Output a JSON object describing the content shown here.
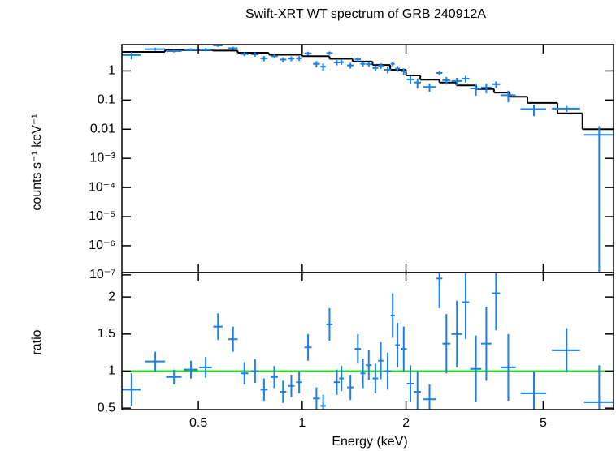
{
  "chart_data": [
    {
      "type": "errorbar",
      "title": "Swift-XRT WT spectrum of GRB 240912A",
      "ylabel": "counts s⁻¹ keV⁻¹",
      "xlog": true,
      "ylog": true,
      "xlim": [
        0.3,
        8
      ],
      "ylim": [
        1.2e-07,
        8
      ],
      "yticks": [
        1,
        0.1,
        0.01,
        {
          "value": 0.001,
          "label": "10⁻³"
        },
        {
          "value": 0.0001,
          "label": "10⁻⁴"
        },
        {
          "value": 1e-05,
          "label": "10⁻⁵"
        },
        {
          "value": 1e-06,
          "label": "10⁻⁶"
        },
        {
          "value": 1e-07,
          "label": "10⁻⁷"
        }
      ],
      "color": "#1a7fe8",
      "x": [
        0.32,
        0.375,
        0.425,
        0.476,
        0.525,
        0.57,
        0.63,
        0.68,
        0.73,
        0.775,
        0.83,
        0.88,
        0.93,
        0.98,
        1.04,
        1.1,
        1.15,
        1.2,
        1.26,
        1.3,
        1.38,
        1.45,
        1.5,
        1.56,
        1.63,
        1.69,
        1.77,
        1.83,
        1.89,
        1.97,
        2.06,
        2.16,
        2.34,
        2.5,
        2.62,
        2.81,
        2.98,
        3.19,
        3.42,
        3.65,
        3.96,
        4.7,
        5.85,
        7.27
      ],
      "x_err": [
        0.02,
        0.025,
        0.022,
        0.022,
        0.022,
        0.018,
        0.02,
        0.018,
        0.018,
        0.018,
        0.02,
        0.02,
        0.02,
        0.02,
        0.025,
        0.025,
        0.02,
        0.025,
        0.025,
        0.02,
        0.03,
        0.03,
        0.025,
        0.03,
        0.03,
        0.03,
        0.04,
        0.025,
        0.03,
        0.04,
        0.05,
        0.05,
        0.1,
        0.05,
        0.07,
        0.1,
        0.07,
        0.12,
        0.12,
        0.1,
        0.2,
        0.4,
        0.55,
        0.7
      ],
      "values": [
        3.5,
        5.6,
        4.8,
        5.4,
        5.4,
        7.5,
        6.0,
        3.8,
        3.7,
        2.7,
        3.2,
        2.45,
        2.65,
        2.7,
        4.0,
        1.75,
        1.4,
        4.1,
        1.95,
        2.0,
        1.55,
        2.5,
        1.75,
        1.7,
        1.25,
        1.5,
        1.1,
        1.75,
        1.2,
        0.98,
        0.51,
        0.4,
        0.28,
        0.85,
        0.48,
        0.45,
        0.54,
        0.25,
        0.27,
        0.35,
        0.147,
        0.049,
        0.051,
        0.0064
      ],
      "errors": [
        1.0,
        0.65,
        0.5,
        0.6,
        0.7,
        0.85,
        0.7,
        0.6,
        0.6,
        0.55,
        0.5,
        0.5,
        0.5,
        0.5,
        0.55,
        0.42,
        0.4,
        0.55,
        0.4,
        0.38,
        0.34,
        0.4,
        0.36,
        0.32,
        0.28,
        0.33,
        0.28,
        0.3,
        0.27,
        0.23,
        0.15,
        0.15,
        0.09,
        0.15,
        0.14,
        0.13,
        0.14,
        0.11,
        0.1,
        0.085,
        0.063,
        0.021,
        0.012,
        0.0064
      ],
      "model_bins": [
        0.3,
        0.4,
        0.55,
        0.65,
        0.8,
        1.0,
        1.2,
        1.4,
        1.6,
        1.8,
        2.0,
        2.2,
        2.5,
        2.8,
        3.2,
        3.6,
        4.0,
        4.5,
        5.5,
        6.5,
        8.0
      ],
      "model_values": [
        4.5,
        5.2,
        5.0,
        4.2,
        3.6,
        3.2,
        2.6,
        2.1,
        1.6,
        1.1,
        0.7,
        0.5,
        0.4,
        0.32,
        0.24,
        0.18,
        0.13,
        0.08,
        0.035,
        0.01
      ],
      "model_color": "#000000"
    },
    {
      "type": "errorbar",
      "xlabel": "Energy (keV)",
      "ylabel": "ratio",
      "xlog": true,
      "ylog": false,
      "xlim": [
        0.3,
        8
      ],
      "ylim": [
        0.48,
        2.33
      ],
      "xticks": [
        0.5,
        1,
        2,
        5
      ],
      "yticks": [
        0.5,
        1,
        1.5,
        2
      ],
      "color": "#1a7fe8",
      "x": [
        0.32,
        0.375,
        0.425,
        0.476,
        0.525,
        0.57,
        0.63,
        0.68,
        0.73,
        0.775,
        0.83,
        0.88,
        0.93,
        0.98,
        1.04,
        1.1,
        1.15,
        1.2,
        1.26,
        1.3,
        1.38,
        1.45,
        1.5,
        1.56,
        1.63,
        1.69,
        1.77,
        1.83,
        1.89,
        1.97,
        2.06,
        2.16,
        2.34,
        2.5,
        2.62,
        2.81,
        2.98,
        3.19,
        3.42,
        3.65,
        3.96,
        4.7,
        5.85,
        7.27
      ],
      "x_err": [
        0.02,
        0.025,
        0.022,
        0.022,
        0.022,
        0.018,
        0.02,
        0.018,
        0.018,
        0.018,
        0.02,
        0.02,
        0.02,
        0.02,
        0.025,
        0.025,
        0.02,
        0.025,
        0.025,
        0.02,
        0.03,
        0.03,
        0.025,
        0.03,
        0.03,
        0.03,
        0.04,
        0.025,
        0.03,
        0.04,
        0.05,
        0.05,
        0.1,
        0.05,
        0.07,
        0.1,
        0.07,
        0.12,
        0.12,
        0.1,
        0.2,
        0.4,
        0.55,
        0.7
      ],
      "values": [
        0.75,
        1.13,
        0.92,
        1.02,
        1.05,
        1.6,
        1.43,
        0.97,
        1.0,
        0.75,
        0.92,
        0.72,
        0.8,
        0.85,
        1.32,
        0.63,
        0.53,
        1.63,
        0.85,
        0.9,
        0.78,
        1.3,
        0.97,
        1.08,
        0.9,
        1.14,
        1.0,
        1.75,
        1.35,
        1.3,
        0.83,
        0.72,
        0.62,
        2.25,
        1.37,
        1.5,
        1.93,
        1.03,
        1.37,
        2.05,
        1.05,
        0.7,
        1.28,
        0.58
      ],
      "errors": [
        0.22,
        0.13,
        0.1,
        0.12,
        0.14,
        0.18,
        0.17,
        0.15,
        0.16,
        0.15,
        0.15,
        0.15,
        0.15,
        0.15,
        0.18,
        0.15,
        0.15,
        0.22,
        0.17,
        0.17,
        0.17,
        0.2,
        0.2,
        0.2,
        0.2,
        0.25,
        0.25,
        0.3,
        0.3,
        0.3,
        0.25,
        0.28,
        0.2,
        0.4,
        0.4,
        0.45,
        0.5,
        0.45,
        0.5,
        0.5,
        0.45,
        0.3,
        0.3,
        0.5
      ],
      "reference_line": 1,
      "reference_color": "#22dd22"
    }
  ]
}
